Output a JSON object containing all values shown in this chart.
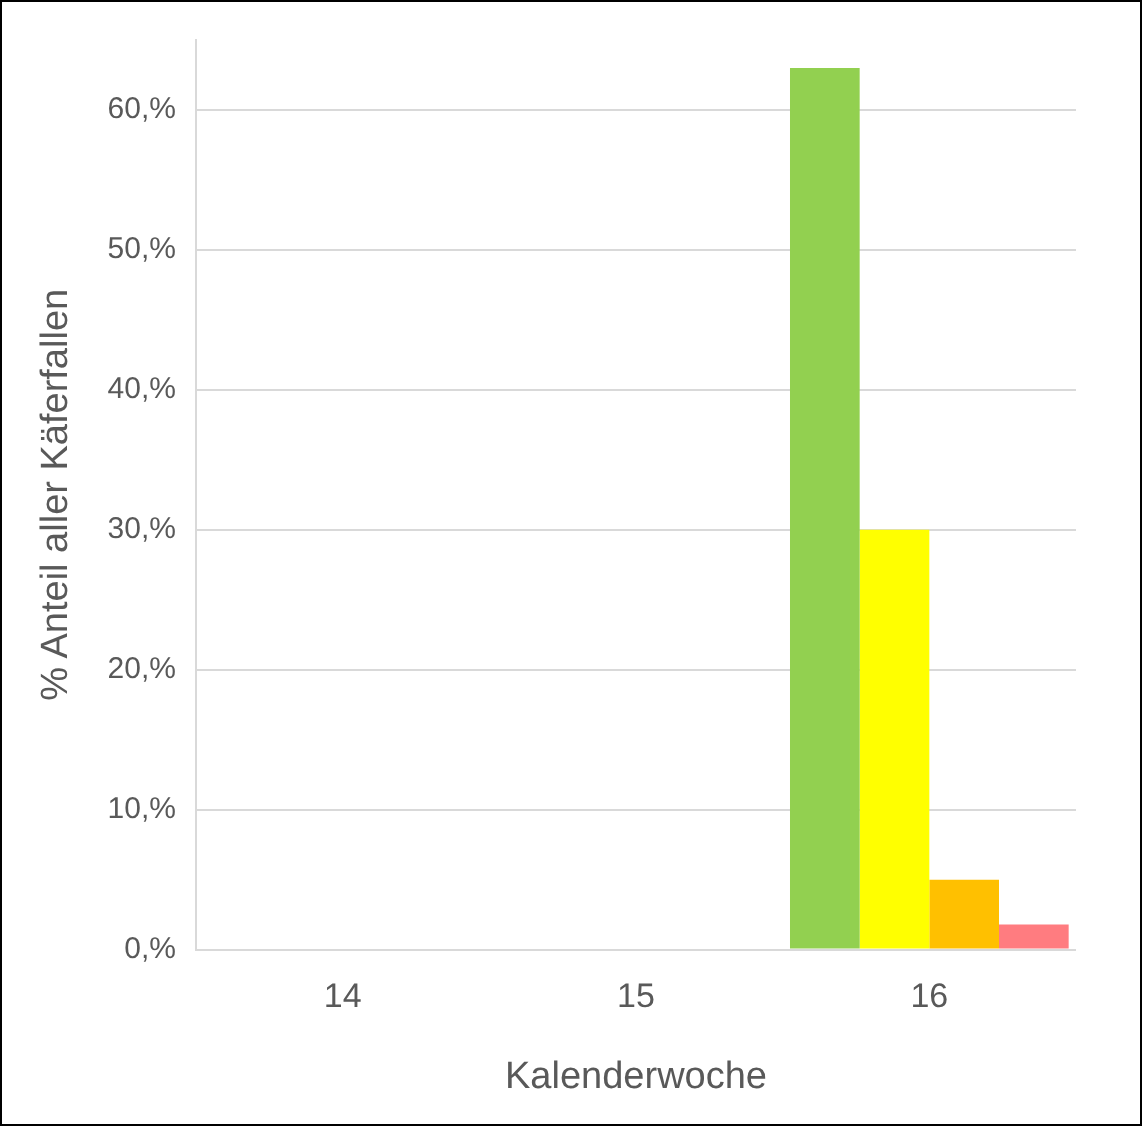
{
  "chart_data": {
    "type": "bar",
    "categories": [
      "14",
      "15",
      "16"
    ],
    "series": [
      {
        "color": "#92d050",
        "values": [
          0,
          0,
          63
        ]
      },
      {
        "color": "#ffff00",
        "values": [
          0,
          0,
          30
        ]
      },
      {
        "color": "#ffc000",
        "values": [
          0,
          0,
          5
        ]
      },
      {
        "color": "#ff7c80",
        "values": [
          0,
          0,
          1.8
        ]
      }
    ],
    "ylim": [
      0,
      65
    ],
    "yticks": [
      {
        "value": 0,
        "label": "0,%"
      },
      {
        "value": 10,
        "label": "10,%"
      },
      {
        "value": 20,
        "label": "20,%"
      },
      {
        "value": 30,
        "label": "30,%"
      },
      {
        "value": 40,
        "label": "40,%"
      },
      {
        "value": 50,
        "label": "50,%"
      },
      {
        "value": 60,
        "label": "60,%"
      }
    ],
    "ylabel": "% Anteil aller Käferfallen",
    "xlabel": "Kalenderwoche",
    "grid": "y",
    "legend": false
  }
}
